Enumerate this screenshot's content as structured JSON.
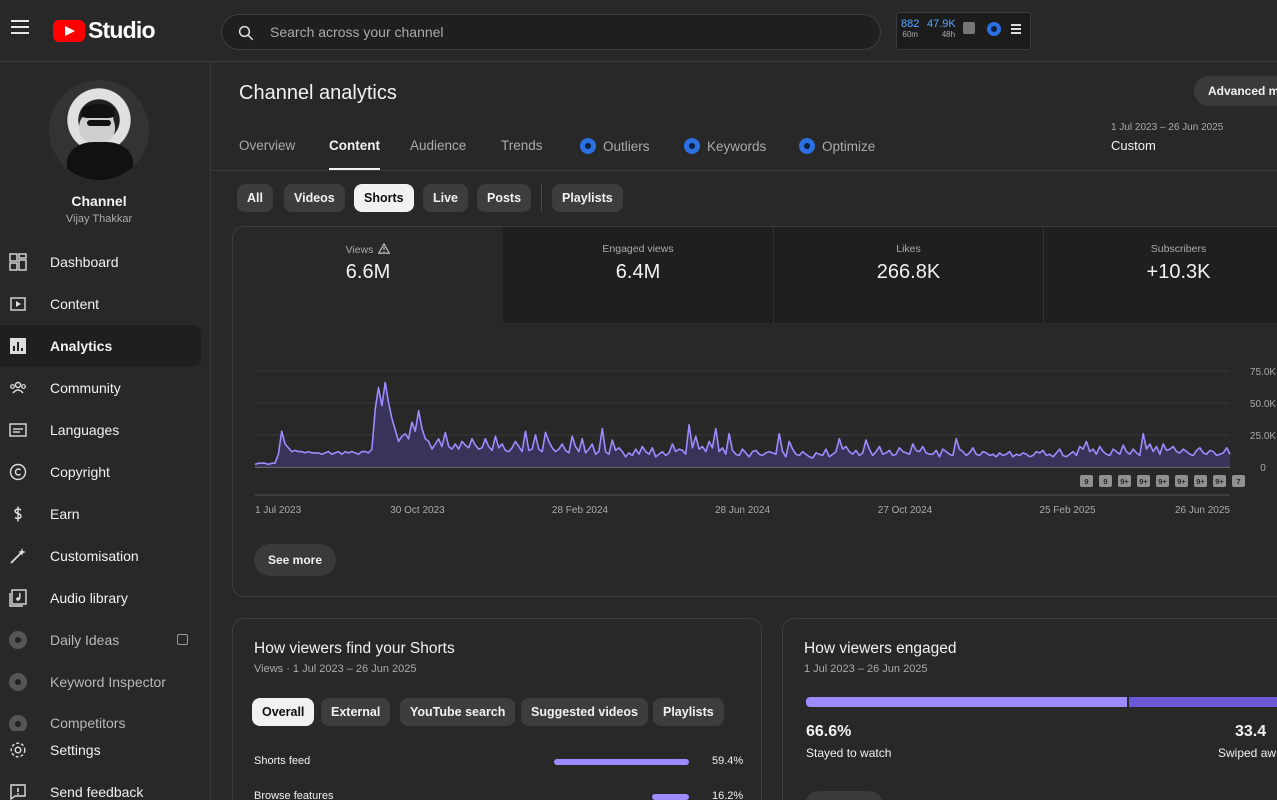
{
  "header": {
    "logo_text": "Studio",
    "search_placeholder": "Search across your channel",
    "widget": {
      "stat1_value": "882",
      "stat1_sub": "60m",
      "stat2_value": "47.9K",
      "stat2_sub": "48h"
    }
  },
  "sidebar": {
    "channel_label": "Channel",
    "channel_name": "Vijay Thakkar",
    "items": [
      {
        "label": "Dashboard",
        "icon": "dashboard-icon"
      },
      {
        "label": "Content",
        "icon": "content-icon"
      },
      {
        "label": "Analytics",
        "icon": "analytics-icon",
        "active": true
      },
      {
        "label": "Community",
        "icon": "community-icon"
      },
      {
        "label": "Languages",
        "icon": "languages-icon"
      },
      {
        "label": "Copyright",
        "icon": "copyright-icon"
      },
      {
        "label": "Earn",
        "icon": "earn-icon"
      },
      {
        "label": "Customisation",
        "icon": "customisation-icon"
      },
      {
        "label": "Audio library",
        "icon": "audio-library-icon"
      },
      {
        "label": "Daily Ideas",
        "icon": "extension-icon"
      },
      {
        "label": "Keyword Inspector",
        "icon": "extension-icon"
      },
      {
        "label": "Competitors",
        "icon": "extension-icon"
      }
    ],
    "bottom": [
      {
        "label": "Settings",
        "icon": "settings-icon"
      },
      {
        "label": "Send feedback",
        "icon": "feedback-icon"
      }
    ]
  },
  "main": {
    "title": "Channel analytics",
    "advanced_label": "Advanced m",
    "date_range": "1 Jul 2023 – 26 Jun 2025",
    "date_mode": "Custom",
    "tabs": [
      "Overview",
      "Content",
      "Audience",
      "Trends",
      "Outliers",
      "Keywords",
      "Optimize"
    ],
    "chips": [
      "All",
      "Videos",
      "Shorts",
      "Live",
      "Posts",
      "Playlists"
    ],
    "metrics": [
      {
        "label": "Views",
        "value": "6.6M"
      },
      {
        "label": "Engaged views",
        "value": "6.4M"
      },
      {
        "label": "Likes",
        "value": "266.8K"
      },
      {
        "label": "Subscribers",
        "value": "+10.3K"
      }
    ],
    "see_more": "See more"
  },
  "chart_data": {
    "type": "area",
    "series": [
      {
        "values": [
          2,
          3,
          3,
          3,
          2,
          3,
          3,
          10,
          28,
          18,
          15,
          12,
          13,
          12,
          12,
          11,
          12,
          11,
          11,
          11,
          10,
          11,
          12,
          10,
          11,
          12,
          10,
          12,
          11,
          12,
          11,
          10,
          12,
          12,
          11,
          14,
          45,
          62,
          48,
          66,
          50,
          38,
          29,
          20,
          24,
          26,
          22,
          35,
          28,
          44,
          30,
          22,
          20,
          14,
          18,
          22,
          16,
          27,
          16,
          14,
          18,
          14,
          20,
          17,
          15,
          22,
          17,
          14,
          15,
          22,
          16,
          13,
          24,
          15,
          18,
          13,
          12,
          15,
          20,
          16,
          12,
          28,
          13,
          14,
          25,
          14,
          12,
          27,
          20,
          15,
          12,
          14,
          18,
          13,
          11,
          24,
          16,
          12,
          22,
          11,
          14,
          18,
          10,
          12,
          30,
          12,
          10,
          21,
          13,
          15,
          12,
          8,
          11,
          9,
          14,
          10,
          16,
          12,
          10,
          15,
          8,
          10,
          12,
          9,
          11,
          18,
          12,
          14,
          13,
          10,
          33,
          15,
          24,
          14,
          16,
          12,
          20,
          15,
          30,
          12,
          15,
          10,
          26,
          13,
          10,
          9,
          14,
          11,
          8,
          12,
          13,
          10,
          9,
          11,
          12,
          11,
          10,
          26,
          12,
          8,
          20,
          14,
          10,
          9,
          12,
          10,
          8,
          7,
          11,
          10,
          9,
          14,
          8,
          10,
          12,
          22,
          14,
          16,
          12,
          10,
          13,
          9,
          11,
          21,
          14,
          9,
          12,
          16,
          10,
          11,
          13,
          9,
          10,
          15,
          12,
          11,
          10,
          18,
          13,
          12,
          16,
          11,
          10,
          10,
          13,
          8,
          14,
          12,
          10,
          9,
          22,
          14,
          12,
          9,
          11,
          15,
          10,
          9,
          12,
          11,
          9,
          10,
          8,
          11,
          9,
          10,
          12,
          8,
          10,
          9,
          11,
          10,
          8,
          9,
          12,
          11,
          13,
          9,
          10,
          8,
          11,
          14,
          9,
          8,
          10,
          12,
          9,
          16,
          14,
          20,
          12,
          14,
          10,
          16,
          12,
          10,
          9,
          14,
          12,
          10,
          17,
          12,
          10,
          14,
          11,
          9,
          26,
          14,
          18,
          12,
          16,
          10,
          18,
          13,
          14,
          16,
          12,
          11,
          14,
          12,
          10,
          9,
          13,
          15,
          11,
          10,
          13,
          12,
          9,
          10,
          11,
          15,
          10
        ]
      }
    ],
    "x_tick_labels": [
      "1 Jul 2023",
      "30 Oct 2023",
      "28 Feb 2024",
      "28 Jun 2024",
      "27 Oct 2024",
      "25 Feb 2025",
      "26 Jun 2025"
    ],
    "y_tick_labels": [
      "75.0K",
      "50.0K",
      "25.0K",
      "0"
    ],
    "ylim": [
      0,
      75000
    ],
    "y_unit_scale": 1000,
    "grid": true,
    "markers": [
      "9",
      "9",
      "9+",
      "9+",
      "9+",
      "9+",
      "9+",
      "9+",
      "7"
    ]
  },
  "cards": {
    "sources": {
      "title": "How viewers find your Shorts",
      "subtitle": "Views · 1 Jul 2023 – 26 Jun 2025",
      "chips": [
        "Overall",
        "External",
        "YouTube search",
        "Suggested videos",
        "Playlists"
      ],
      "rows": [
        {
          "label": "Shorts feed",
          "pct": "59.4%",
          "value": 59.4
        },
        {
          "label": "Browse features",
          "pct": "16.2%",
          "value": 16.2
        }
      ]
    },
    "engaged": {
      "title": "How viewers engaged",
      "subtitle": "1 Jul 2023 – 26 Jun 2025",
      "stayed_value": "66.6%",
      "stayed_label": "Stayed to watch",
      "swiped_value": "33.4",
      "swiped_label": "Swiped aw"
    }
  },
  "colors": {
    "accent": "#9c8cff",
    "brand": "#ff0000",
    "link": "#5aa7ff"
  }
}
